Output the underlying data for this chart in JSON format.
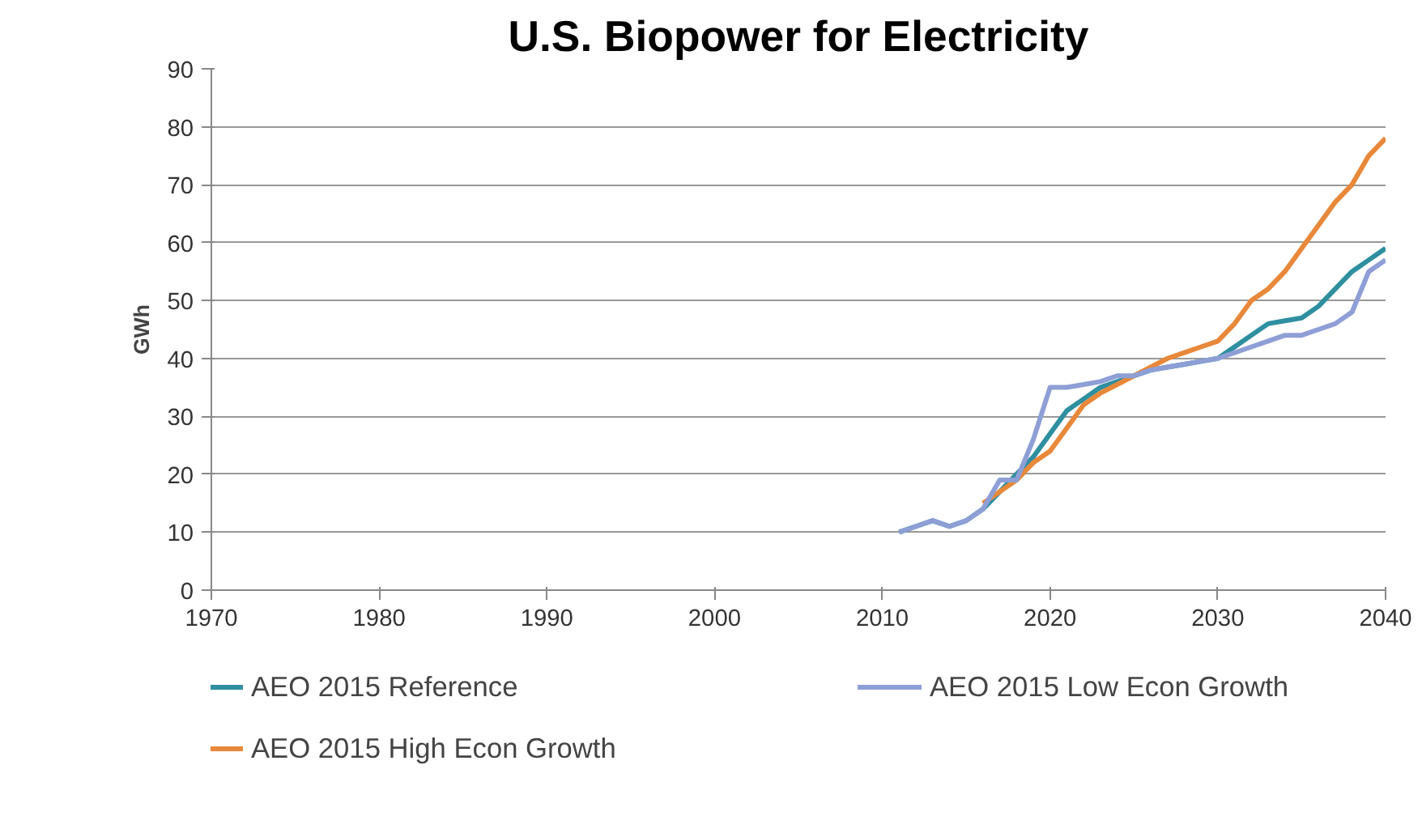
{
  "chart_data": {
    "type": "line",
    "title": "U.S. Biopower for Electricity",
    "ylabel": "GWh",
    "x": [
      2011,
      2012,
      2013,
      2014,
      2015,
      2016,
      2017,
      2018,
      2019,
      2020,
      2021,
      2022,
      2023,
      2024,
      2025,
      2026,
      2027,
      2028,
      2029,
      2030,
      2031,
      2032,
      2033,
      2034,
      2035,
      2036,
      2037,
      2038,
      2039,
      2040
    ],
    "series": [
      {
        "name": "AEO 2015 Reference",
        "color": "#2e8fa0",
        "values": [
          10,
          11,
          12,
          11,
          12,
          14,
          17,
          20,
          23,
          27,
          31,
          33,
          35,
          36,
          37,
          38,
          38.5,
          39,
          39.5,
          40,
          42,
          44,
          46,
          46.5,
          47,
          49,
          52,
          55,
          57,
          59
        ]
      },
      {
        "name": "AEO 2015 High Econ Growth",
        "color": "#e8883a",
        "values": [
          null,
          null,
          null,
          null,
          null,
          15,
          17,
          19,
          22,
          24,
          28,
          32,
          34,
          35.5,
          37,
          38.5,
          40,
          41,
          42,
          43,
          46,
          50,
          52,
          55,
          59,
          63,
          67,
          70,
          75,
          78
        ]
      },
      {
        "name": "AEO 2015 Low Econ Growth",
        "color": "#8e9fd6",
        "values": [
          10,
          11,
          12,
          11,
          12,
          14,
          19,
          19,
          26,
          35,
          35,
          35.5,
          36,
          37,
          37,
          38,
          38.5,
          39,
          39.5,
          40,
          41,
          42,
          43,
          44,
          44,
          45,
          46,
          48,
          55,
          57
        ]
      }
    ],
    "xlim": [
      1970,
      2040
    ],
    "xticks": [
      1970,
      1980,
      1990,
      2000,
      2010,
      2020,
      2030,
      2040
    ],
    "ylim": [
      0,
      90
    ],
    "yticks": [
      0,
      10,
      20,
      30,
      40,
      50,
      60,
      70,
      80,
      90
    ],
    "grid": "y",
    "legend": "bottom",
    "marker": "none",
    "line_style": "solid"
  }
}
